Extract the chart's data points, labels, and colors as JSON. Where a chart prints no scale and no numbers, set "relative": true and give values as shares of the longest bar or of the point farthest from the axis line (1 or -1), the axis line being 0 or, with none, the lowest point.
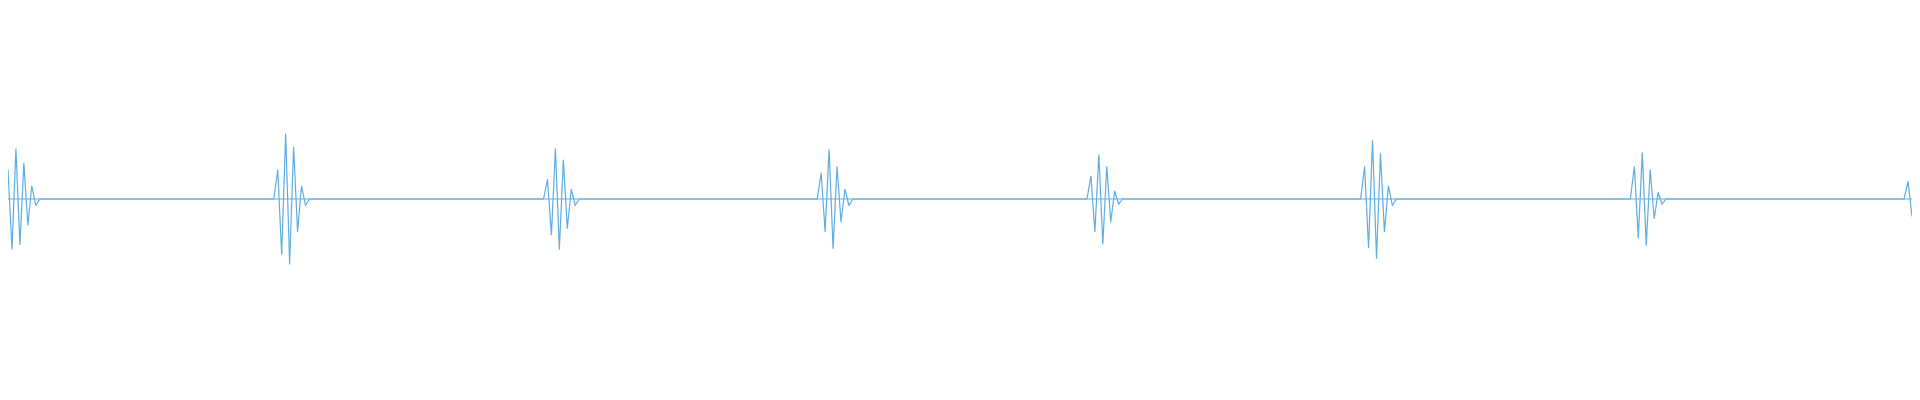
{
  "chart_data": {
    "type": "line",
    "relative": true,
    "ref_lines": [
      {
        "axis": "y",
        "value": 0,
        "color": "#5dade2"
      }
    ],
    "categories": [
      null,
      null,
      null,
      null,
      null,
      null,
      null,
      null,
      null,
      null,
      null,
      null,
      null,
      null,
      null,
      null,
      null,
      null,
      null,
      null,
      null,
      null,
      null,
      null,
      null,
      null,
      null,
      null,
      null,
      null,
      null,
      null,
      null,
      null,
      null,
      null,
      null,
      null,
      null,
      null,
      null,
      null,
      null,
      null,
      null,
      null,
      null,
      null,
      null,
      null,
      null,
      null,
      null,
      null,
      null,
      null,
      null,
      null,
      null,
      null,
      null,
      null,
      null,
      null,
      null,
      null,
      null,
      null,
      null,
      null,
      null,
      null,
      null,
      null,
      null,
      null,
      null,
      null,
      null,
      null,
      null,
      null,
      null,
      null,
      null,
      null,
      null,
      null,
      null,
      null,
      null,
      null,
      null,
      null,
      null,
      null,
      null,
      null,
      null,
      null,
      null,
      null,
      null,
      null,
      null,
      null,
      null,
      null,
      null,
      null,
      null,
      null,
      null,
      null,
      null,
      null,
      null,
      null,
      null,
      null,
      null,
      null,
      null,
      null,
      null,
      null,
      null,
      null,
      null,
      null,
      null,
      null,
      null,
      null,
      null,
      null,
      null,
      null,
      null,
      null,
      null,
      null,
      null,
      null,
      null,
      null,
      null,
      null,
      null,
      null,
      null,
      null,
      null,
      null,
      null,
      null,
      null,
      null,
      null,
      null,
      null,
      null,
      null,
      null,
      null,
      null,
      null,
      null,
      null,
      null,
      null,
      null,
      null,
      null,
      null,
      null,
      null,
      null,
      null,
      null,
      null,
      null,
      null,
      null,
      null,
      null,
      null,
      null,
      null,
      null,
      null,
      null,
      null,
      null,
      null,
      null,
      null,
      null,
      null,
      null,
      null,
      null,
      null,
      null,
      null,
      null,
      null,
      null,
      null,
      null,
      null,
      null,
      null,
      null,
      null,
      null,
      null,
      null,
      null,
      null,
      null,
      null,
      null,
      null,
      null,
      null,
      null,
      null,
      null,
      null,
      null,
      null,
      null,
      null,
      null,
      null,
      null,
      null,
      null,
      null,
      null,
      null,
      null,
      null,
      null,
      null,
      null,
      null,
      null,
      null,
      null,
      null,
      null,
      null,
      null,
      null,
      null,
      null,
      null,
      null,
      null,
      null,
      null,
      null,
      null,
      null,
      null,
      null,
      null,
      null,
      null,
      null,
      null,
      null,
      null,
      null,
      null,
      null,
      null,
      null,
      null,
      null,
      null,
      null,
      null,
      null,
      null,
      null,
      null,
      null,
      null,
      null,
      null,
      null,
      null,
      null,
      null,
      null,
      null,
      null,
      null,
      null,
      null,
      null,
      null,
      null,
      null,
      null,
      null,
      null,
      null,
      null,
      null,
      null,
      null,
      null,
      null,
      null,
      null,
      null,
      null,
      null,
      null,
      null,
      null,
      null,
      null,
      null,
      null,
      null,
      null,
      null,
      null,
      null,
      null,
      null,
      null,
      null,
      null,
      null,
      null,
      null,
      null,
      null,
      null,
      null,
      null,
      null,
      null,
      null,
      null,
      null,
      null,
      null,
      null,
      null,
      null,
      null,
      null,
      null,
      null,
      null,
      null,
      null,
      null,
      null,
      null,
      null,
      null,
      null,
      null,
      null,
      null,
      null,
      null,
      null,
      null,
      null,
      null,
      null,
      null,
      null,
      null,
      null,
      null,
      null,
      null,
      null,
      null,
      null,
      null,
      null,
      null,
      null,
      null,
      null,
      null,
      null,
      null,
      null,
      null,
      null,
      null,
      null,
      null,
      null,
      null,
      null,
      null,
      null,
      null,
      null,
      null,
      null,
      null,
      null,
      null,
      null,
      null,
      null,
      null,
      null,
      null,
      null,
      null,
      null,
      null,
      null,
      null,
      null,
      null,
      null,
      null,
      null,
      null,
      null,
      null,
      null,
      null,
      null,
      null,
      null,
      null,
      null,
      null,
      null,
      null,
      null,
      null,
      null,
      null,
      null,
      null,
      null,
      null,
      null,
      null,
      null,
      null,
      null,
      null,
      null,
      null,
      null,
      null,
      null,
      null,
      null,
      null,
      null,
      null,
      null,
      null,
      null,
      null,
      null,
      null,
      null,
      null,
      null,
      null
    ],
    "series": [
      {
        "color": "#5dade2",
        "values": [
          0.45,
          -0.77,
          0.77,
          -0.7,
          0.55,
          -0.4,
          0.2,
          -0.1,
          0,
          0,
          0,
          0,
          0,
          0,
          0,
          0,
          0,
          0,
          0,
          0,
          0,
          0,
          0,
          0,
          0,
          0,
          0,
          0,
          0,
          0,
          0,
          0,
          0,
          0,
          0,
          0,
          0,
          0,
          0,
          0,
          0,
          0,
          0,
          0,
          0,
          0,
          0,
          0,
          0,
          0,
          0,
          0,
          0,
          0,
          0,
          0,
          0,
          0,
          0,
          0,
          0,
          0,
          0,
          0,
          0,
          0,
          0,
          0,
          0.45,
          -0.85,
          1,
          -1,
          0.8,
          -0.5,
          0.2,
          -0.1,
          0,
          0,
          0,
          0,
          0,
          0,
          0,
          0,
          0,
          0,
          0,
          0,
          0,
          0,
          0,
          0,
          0,
          0,
          0,
          0,
          0,
          0,
          0,
          0,
          0,
          0,
          0,
          0,
          0,
          0,
          0,
          0,
          0,
          0,
          0,
          0,
          0,
          0,
          0,
          0,
          0,
          0,
          0,
          0,
          0,
          0,
          0,
          0,
          0,
          0,
          0,
          0,
          0,
          0,
          0,
          0,
          0,
          0,
          0,
          0,
          0.3,
          -0.55,
          0.77,
          -0.77,
          0.6,
          -0.45,
          0.15,
          -0.1,
          0,
          0,
          0,
          0,
          0,
          0,
          0,
          0,
          0,
          0,
          0,
          0,
          0,
          0,
          0,
          0,
          0,
          0,
          0,
          0,
          0,
          0,
          0,
          0,
          0,
          0,
          0,
          0,
          0,
          0,
          0,
          0,
          0,
          0,
          0,
          0,
          0,
          0,
          0,
          0,
          0,
          0,
          0,
          0,
          0,
          0,
          0,
          0,
          0,
          0,
          0,
          0,
          0,
          0,
          0,
          0,
          0,
          0,
          0,
          0,
          0,
          0.4,
          -0.5,
          0.76,
          -0.76,
          0.5,
          -0.35,
          0.15,
          -0.1,
          0,
          0,
          0,
          0,
          0,
          0,
          0,
          0,
          0,
          0,
          0,
          0,
          0,
          0,
          0,
          0,
          0,
          0,
          0,
          0,
          0,
          0,
          0,
          0,
          0,
          0,
          0,
          0,
          0,
          0,
          0,
          0,
          0,
          0,
          0,
          0,
          0,
          0,
          0,
          0,
          0,
          0,
          0,
          0,
          0,
          0,
          0,
          0,
          0,
          0,
          0,
          0,
          0,
          0,
          0,
          0,
          0,
          0,
          0,
          0,
          0.35,
          -0.5,
          0.68,
          -0.69,
          0.5,
          -0.35,
          0.12,
          -0.08,
          0,
          0,
          0,
          0,
          0,
          0,
          0,
          0,
          0,
          0,
          0,
          0,
          0,
          0,
          0,
          0,
          0,
          0,
          0,
          0,
          0,
          0,
          0,
          0,
          0,
          0,
          0,
          0,
          0,
          0,
          0,
          0,
          0,
          0,
          0,
          0,
          0,
          0,
          0,
          0,
          0,
          0,
          0,
          0,
          0,
          0,
          0,
          0,
          0,
          0,
          0,
          0,
          0,
          0,
          0,
          0,
          0,
          0,
          0,
          0,
          0,
          0.5,
          -0.75,
          0.9,
          -0.91,
          0.7,
          -0.5,
          0.2,
          -0.1,
          0,
          0,
          0,
          0,
          0,
          0,
          0,
          0,
          0,
          0,
          0,
          0,
          0,
          0,
          0,
          0,
          0,
          0,
          0,
          0,
          0,
          0,
          0,
          0,
          0,
          0,
          0,
          0,
          0,
          0,
          0,
          0,
          0,
          0,
          0,
          0,
          0,
          0,
          0,
          0,
          0,
          0,
          0,
          0,
          0,
          0,
          0,
          0,
          0,
          0,
          0,
          0,
          0,
          0,
          0,
          0,
          0,
          0,
          0,
          0,
          0.5,
          -0.6,
          0.71,
          -0.71,
          0.45,
          -0.3,
          0.1,
          -0.08,
          0,
          0,
          0,
          0,
          0,
          0,
          0,
          0,
          0,
          0,
          0,
          0,
          0,
          0,
          0,
          0,
          0,
          0,
          0,
          0,
          0,
          0,
          0,
          0,
          0,
          0,
          0,
          0,
          0,
          0,
          0,
          0,
          0,
          0,
          0,
          0,
          0,
          0,
          0,
          0,
          0,
          0,
          0,
          0,
          0,
          0,
          0,
          0,
          0,
          0,
          0,
          0,
          0,
          0,
          0,
          0,
          0,
          0,
          0,
          0,
          0,
          0.27,
          -0.27
        ]
      }
    ]
  }
}
